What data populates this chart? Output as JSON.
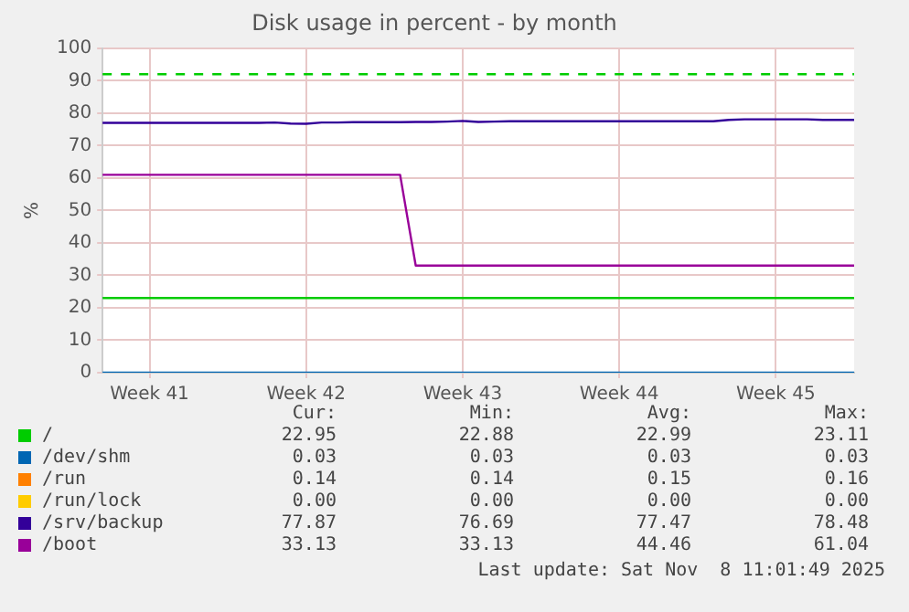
{
  "chart_data": {
    "type": "line",
    "title": "Disk usage in percent - by month",
    "ylabel": "%",
    "categories": [
      null,
      null,
      null,
      "Week 41",
      null,
      null,
      null,
      null,
      null,
      null,
      null,
      null,
      null,
      "Week 42",
      null,
      null,
      null,
      null,
      null,
      null,
      null,
      null,
      null,
      "Week 43",
      null,
      null,
      null,
      null,
      null,
      null,
      null,
      null,
      null,
      "Week 44",
      null,
      null,
      null,
      null,
      null,
      null,
      null,
      null,
      null,
      "Week 45",
      null,
      null,
      null,
      null,
      null
    ],
    "ylim": [
      0,
      100
    ],
    "yticks": [
      0,
      10,
      20,
      30,
      40,
      50,
      60,
      70,
      80,
      90,
      100
    ],
    "grid": true,
    "legend": "bottom",
    "marker": "none",
    "line_style": "solid",
    "ref_lines": [
      {
        "axis": "y",
        "value": 92,
        "color": "#00cc00",
        "line_style": "dashed"
      }
    ],
    "series": [
      {
        "name": "/",
        "color": "#00cc00",
        "values": [
          23,
          23,
          23,
          23,
          23,
          23,
          23,
          23,
          23,
          23,
          23,
          23,
          23,
          23,
          23,
          23,
          23,
          23,
          23,
          23,
          23,
          23,
          23,
          23,
          23,
          23,
          23,
          23,
          23,
          23,
          23,
          23,
          23,
          23,
          23,
          23,
          23,
          23,
          23,
          23,
          23,
          23,
          23,
          23,
          23,
          23,
          23,
          23,
          23
        ]
      },
      {
        "name": "/dev/shm",
        "color": "#0066b3",
        "values": [
          0,
          0,
          0,
          0,
          0,
          0,
          0,
          0,
          0,
          0,
          0,
          0,
          0,
          0,
          0,
          0,
          0,
          0,
          0,
          0,
          0,
          0,
          0,
          0,
          0,
          0,
          0,
          0,
          0,
          0,
          0,
          0,
          0,
          0,
          0,
          0,
          0,
          0,
          0,
          0,
          0,
          0,
          0,
          0,
          0,
          0,
          0,
          0,
          0
        ]
      },
      {
        "name": "/run",
        "color": "#ff8000",
        "values": [
          null,
          null,
          null,
          null,
          null,
          null,
          null,
          null,
          null,
          null,
          null,
          null,
          null,
          null,
          null,
          null,
          null,
          null,
          null,
          null,
          null,
          null,
          null,
          null,
          null,
          null,
          null,
          null,
          null,
          null,
          null,
          null,
          null,
          null,
          null,
          null,
          null,
          null,
          null,
          null,
          null,
          null,
          null,
          null,
          null,
          null,
          null,
          null,
          null
        ]
      },
      {
        "name": "/run/lock",
        "color": "#ffcc00",
        "values": [
          null,
          null,
          null,
          null,
          null,
          null,
          null,
          null,
          null,
          null,
          null,
          null,
          null,
          null,
          null,
          null,
          null,
          null,
          null,
          null,
          null,
          null,
          null,
          null,
          null,
          null,
          null,
          null,
          null,
          null,
          null,
          null,
          null,
          null,
          null,
          null,
          null,
          null,
          null,
          null,
          null,
          null,
          null,
          null,
          null,
          null,
          null,
          null,
          null
        ]
      },
      {
        "name": "/srv/backup",
        "color": "#330099",
        "values": [
          77.0,
          77.0,
          77.0,
          77.0,
          77.0,
          77.0,
          77.0,
          77.0,
          77.0,
          77.0,
          77.0,
          77.1,
          76.8,
          76.7,
          77.1,
          77.1,
          77.2,
          77.2,
          77.2,
          77.2,
          77.3,
          77.3,
          77.4,
          77.6,
          77.3,
          77.4,
          77.5,
          77.5,
          77.5,
          77.5,
          77.5,
          77.5,
          77.5,
          77.5,
          77.5,
          77.5,
          77.5,
          77.5,
          77.5,
          77.5,
          77.9,
          78.1,
          78.1,
          78.1,
          78.1,
          78.1,
          77.9,
          77.9,
          77.9
        ]
      },
      {
        "name": "/boot",
        "color": "#990099",
        "values": [
          61,
          61,
          61,
          61,
          61,
          61,
          61,
          61,
          61,
          61,
          61,
          61,
          61,
          61,
          61,
          61,
          61,
          61,
          61,
          61,
          33,
          33,
          33,
          33,
          33,
          33,
          33,
          33,
          33,
          33,
          33,
          33,
          33,
          33,
          33,
          33,
          33,
          33,
          33,
          33,
          33,
          33,
          33,
          33,
          33,
          33,
          33,
          33,
          33
        ]
      }
    ],
    "annotations": [
      "Cur:",
      "Min:",
      "Avg:",
      "Max:",
      "22.95",
      "22.88",
      "22.99",
      "23.11",
      "0.03",
      "0.03",
      "0.03",
      "0.03",
      "0.14",
      "0.14",
      "0.15",
      "0.16",
      "0.00",
      "0.00",
      "0.00",
      "0.00",
      "77.87",
      "76.69",
      "77.47",
      "78.48",
      "33.13",
      "33.13",
      "44.46",
      "61.04",
      "Last update: Sat Nov  8 11:01:49 2025"
    ]
  }
}
